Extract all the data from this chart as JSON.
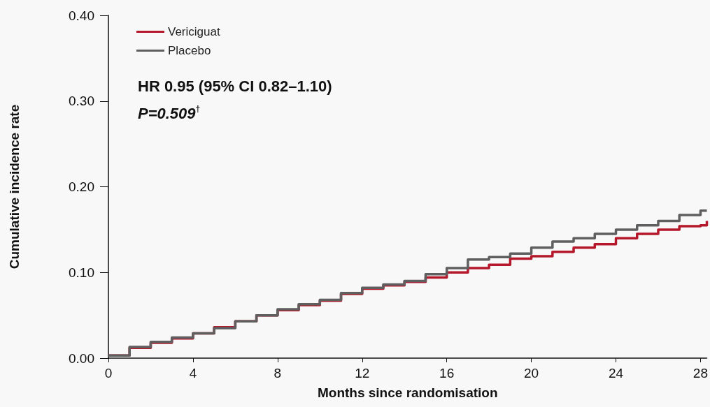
{
  "chart_data": {
    "type": "step",
    "xlabel": "Months since randomisation",
    "ylabel": "Cumulative incidence rate",
    "xlim": [
      0,
      28.3
    ],
    "xticks": [
      0,
      4,
      8,
      12,
      16,
      20,
      24,
      28
    ],
    "ylim": [
      0,
      0.4
    ],
    "yticks": [
      {
        "value": 0,
        "label": "0.00"
      },
      {
        "value": 0.1,
        "label": "0.10"
      },
      {
        "value": 0.2,
        "label": "0.20"
      },
      {
        "value": 0.3,
        "label": "0.30"
      },
      {
        "value": 0.4,
        "label": "0.40"
      }
    ],
    "grid": false,
    "legend": "top left",
    "line_style": "solid",
    "marker": "none",
    "annotations": [
      "HR 0.95 (95% CI 0.82–1.10)",
      "P=0.509$^{†}$"
    ],
    "x": [
      0,
      1,
      2,
      3,
      4,
      5,
      6,
      7,
      8,
      9,
      10,
      11,
      12,
      13,
      14,
      15,
      16,
      17,
      18,
      19,
      20,
      21,
      22,
      23,
      24,
      25,
      26,
      27,
      28,
      28.3
    ],
    "series": [
      {
        "name": "Vericiguat",
        "color": "#b5172b",
        "values": [
          0.003,
          0.012,
          0.018,
          0.023,
          0.029,
          0.036,
          0.043,
          0.05,
          0.056,
          0.062,
          0.067,
          0.075,
          0.081,
          0.085,
          0.089,
          0.094,
          0.1,
          0.105,
          0.109,
          0.116,
          0.119,
          0.124,
          0.129,
          0.133,
          0.14,
          0.145,
          0.15,
          0.154,
          0.155,
          0.16
        ]
      },
      {
        "name": "Placebo",
        "color": "#5f5f5f",
        "values": [
          0.003,
          0.013,
          0.019,
          0.024,
          0.029,
          0.035,
          0.043,
          0.05,
          0.057,
          0.063,
          0.068,
          0.076,
          0.082,
          0.086,
          0.09,
          0.098,
          0.105,
          0.115,
          0.118,
          0.122,
          0.129,
          0.136,
          0.14,
          0.145,
          0.15,
          0.155,
          0.16,
          0.167,
          0.172,
          0.172
        ]
      }
    ]
  }
}
